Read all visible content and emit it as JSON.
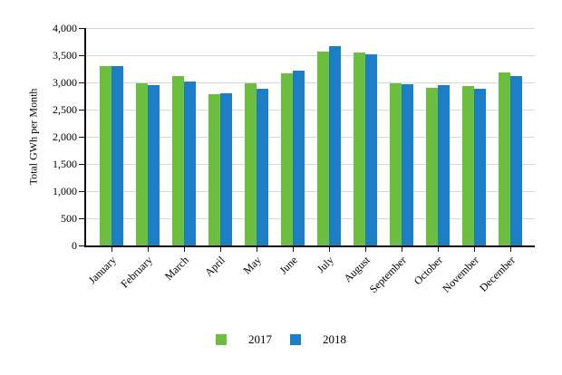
{
  "chart_data": {
    "type": "bar",
    "title": "",
    "xlabel": "",
    "ylabel": "Total GWh per Month",
    "categories": [
      "January",
      "February",
      "March",
      "April",
      "May",
      "June",
      "July",
      "August",
      "September",
      "October",
      "November",
      "December"
    ],
    "series": [
      {
        "name": "2017",
        "color": "#6CBE3E",
        "values": [
          3300,
          2980,
          3110,
          2780,
          2990,
          3170,
          3560,
          3550,
          2980,
          2900,
          2940,
          3190
        ]
      },
      {
        "name": "2018",
        "color": "#1B7EC6",
        "values": [
          3300,
          2950,
          3020,
          2800,
          2890,
          3220,
          3660,
          3520,
          2960,
          2950,
          2890,
          3120
        ]
      }
    ],
    "ylim": [
      0,
      4000
    ],
    "ytick_step": 500,
    "ytick_labels": [
      "0",
      "500",
      "1,000",
      "1,500",
      "2,000",
      "2,500",
      "3,000",
      "3,500",
      "4,000"
    ],
    "grid": "horizontal-gridlines-on",
    "legend_position": "bottom-center",
    "colors": {
      "gridline": "#d9d9d9",
      "axis": "#0d0d0d",
      "text": "#000000",
      "background": "#ffffff"
    }
  }
}
